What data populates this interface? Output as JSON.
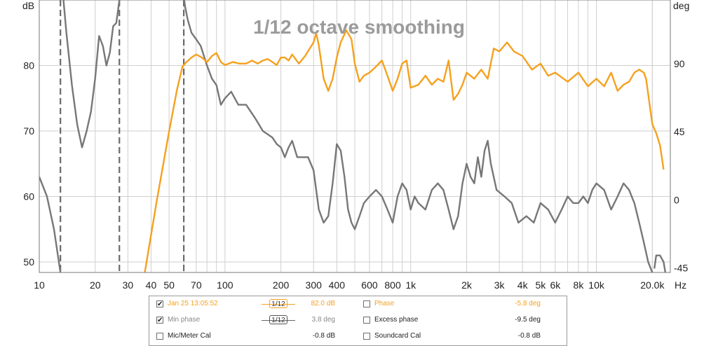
{
  "chart_data": {
    "type": "line",
    "title": "1/12 octave smoothing",
    "x_scale": "log",
    "xlim": [
      10,
      25000
    ],
    "xlabel": "Hz",
    "x_ticks": [
      {
        "v": 10,
        "label": "10"
      },
      {
        "v": 20,
        "label": "20"
      },
      {
        "v": 30,
        "label": "30"
      },
      {
        "v": 40,
        "label": "40"
      },
      {
        "v": 50,
        "label": "50"
      },
      {
        "v": 70,
        "label": "70"
      },
      {
        "v": 100,
        "label": "100"
      },
      {
        "v": 200,
        "label": "200"
      },
      {
        "v": 300,
        "label": "300"
      },
      {
        "v": 400,
        "label": "400"
      },
      {
        "v": 600,
        "label": "600"
      },
      {
        "v": 800,
        "label": "800"
      },
      {
        "v": 1000,
        "label": "1k"
      },
      {
        "v": 2000,
        "label": "2k"
      },
      {
        "v": 3000,
        "label": "3k"
      },
      {
        "v": 4000,
        "label": "4k"
      },
      {
        "v": 5000,
        "label": "5k"
      },
      {
        "v": 6000,
        "label": "6k"
      },
      {
        "v": 8000,
        "label": "8k"
      },
      {
        "v": 10000,
        "label": "10k"
      },
      {
        "v": 20000,
        "label": "20.0k"
      }
    ],
    "y_left": {
      "label": "dB",
      "lim": [
        48.4,
        90
      ],
      "ticks": [
        50,
        60,
        70,
        80
      ]
    },
    "y_right": {
      "label": "deg",
      "lim": [
        -48,
        132
      ],
      "ticks": [
        -45,
        0,
        45,
        90
      ]
    },
    "grid": true,
    "markers_hz": [
      13,
      27,
      60
    ],
    "series": [
      {
        "name": "Min phase",
        "axis": "left",
        "color": "#777777",
        "points": [
          [
            10,
            63
          ],
          [
            11,
            60
          ],
          [
            12,
            55
          ],
          [
            13,
            48.4
          ],
          [
            null,
            null
          ],
          [
            13.3,
            92
          ],
          [
            13.5,
            90
          ],
          [
            14,
            85
          ],
          [
            15,
            77
          ],
          [
            16,
            71
          ],
          [
            17,
            67.5
          ],
          [
            18,
            70
          ],
          [
            19,
            73
          ],
          [
            20,
            78
          ],
          [
            21,
            84.5
          ],
          [
            22,
            83
          ],
          [
            23,
            80
          ],
          [
            24,
            82
          ],
          [
            25,
            86
          ],
          [
            26,
            86.5
          ],
          [
            27,
            90
          ],
          [
            null,
            null
          ],
          [
            59,
            92
          ],
          [
            61,
            89
          ],
          [
            63,
            87
          ],
          [
            66,
            85
          ],
          [
            70,
            84
          ],
          [
            74,
            83
          ],
          [
            80,
            80
          ],
          [
            85,
            78
          ],
          [
            90,
            77
          ],
          [
            95,
            74
          ],
          [
            100,
            75
          ],
          [
            108,
            76
          ],
          [
            118,
            74
          ],
          [
            130,
            74
          ],
          [
            145,
            72
          ],
          [
            160,
            70
          ],
          [
            180,
            69
          ],
          [
            190,
            68
          ],
          [
            200,
            67.5
          ],
          [
            210,
            66
          ],
          [
            220,
            67.5
          ],
          [
            230,
            68.5
          ],
          [
            245,
            66
          ],
          [
            260,
            66
          ],
          [
            280,
            66
          ],
          [
            300,
            64
          ],
          [
            320,
            58
          ],
          [
            340,
            56
          ],
          [
            360,
            57
          ],
          [
            380,
            62
          ],
          [
            400,
            68
          ],
          [
            420,
            67
          ],
          [
            440,
            63
          ],
          [
            460,
            58
          ],
          [
            480,
            56
          ],
          [
            500,
            55
          ],
          [
            530,
            57
          ],
          [
            560,
            59
          ],
          [
            600,
            60
          ],
          [
            650,
            61
          ],
          [
            700,
            60
          ],
          [
            750,
            58
          ],
          [
            800,
            56
          ],
          [
            850,
            60
          ],
          [
            900,
            62
          ],
          [
            950,
            61
          ],
          [
            1000,
            58
          ],
          [
            1050,
            60
          ],
          [
            1100,
            59
          ],
          [
            1200,
            58
          ],
          [
            1300,
            61
          ],
          [
            1400,
            62
          ],
          [
            1500,
            61
          ],
          [
            1600,
            58
          ],
          [
            1700,
            55
          ],
          [
            1800,
            57
          ],
          [
            1900,
            62
          ],
          [
            2000,
            65
          ],
          [
            2100,
            63
          ],
          [
            2200,
            62
          ],
          [
            2300,
            66
          ],
          [
            2400,
            63
          ],
          [
            2500,
            67
          ],
          [
            2600,
            68.5
          ],
          [
            2700,
            65
          ],
          [
            2900,
            61
          ],
          [
            3200,
            60
          ],
          [
            3500,
            59
          ],
          [
            3800,
            56
          ],
          [
            4200,
            57
          ],
          [
            4600,
            56
          ],
          [
            5000,
            59
          ],
          [
            5500,
            58
          ],
          [
            6000,
            56
          ],
          [
            6500,
            58
          ],
          [
            7000,
            60
          ],
          [
            7500,
            59
          ],
          [
            8000,
            59
          ],
          [
            8500,
            60
          ],
          [
            9000,
            59
          ],
          [
            9500,
            61
          ],
          [
            10000,
            62
          ],
          [
            11000,
            61
          ],
          [
            12000,
            58
          ],
          [
            13000,
            60
          ],
          [
            14000,
            62
          ],
          [
            15000,
            61
          ],
          [
            16000,
            59
          ],
          [
            17000,
            56
          ],
          [
            18000,
            53
          ],
          [
            19000,
            50
          ],
          [
            20000,
            48.4
          ],
          [
            null,
            null
          ],
          [
            20500,
            49
          ],
          [
            21000,
            51
          ],
          [
            22000,
            51
          ],
          [
            23000,
            50
          ],
          [
            23500,
            48.4
          ]
        ]
      },
      {
        "name": "Phase",
        "axis": "right",
        "color": "#f5a11e",
        "points": [
          [
            37,
            -48
          ],
          [
            40,
            -23
          ],
          [
            43,
            0
          ],
          [
            46,
            20
          ],
          [
            50,
            45
          ],
          [
            55,
            72
          ],
          [
            59,
            88
          ],
          [
            62,
            91
          ],
          [
            66,
            94
          ],
          [
            70,
            96
          ],
          [
            75,
            94
          ],
          [
            80,
            91
          ],
          [
            85,
            95
          ],
          [
            90,
            97
          ],
          [
            95,
            91
          ],
          [
            100,
            89
          ],
          [
            110,
            91
          ],
          [
            120,
            90
          ],
          [
            130,
            90
          ],
          [
            140,
            92
          ],
          [
            150,
            90
          ],
          [
            160,
            92
          ],
          [
            170,
            93
          ],
          [
            180,
            91
          ],
          [
            190,
            89
          ],
          [
            200,
            94
          ],
          [
            210,
            94
          ],
          [
            220,
            92
          ],
          [
            230,
            96
          ],
          [
            250,
            90
          ],
          [
            270,
            95
          ],
          [
            300,
            104
          ],
          [
            310,
            110
          ],
          [
            320,
            102
          ],
          [
            340,
            80
          ],
          [
            360,
            72
          ],
          [
            380,
            80
          ],
          [
            400,
            94
          ],
          [
            420,
            104
          ],
          [
            450,
            112
          ],
          [
            480,
            106
          ],
          [
            500,
            90
          ],
          [
            530,
            78
          ],
          [
            560,
            82
          ],
          [
            600,
            84
          ],
          [
            650,
            88
          ],
          [
            700,
            92
          ],
          [
            750,
            82
          ],
          [
            800,
            72
          ],
          [
            850,
            80
          ],
          [
            900,
            90
          ],
          [
            950,
            92
          ],
          [
            1000,
            74
          ],
          [
            1100,
            76
          ],
          [
            1200,
            82
          ],
          [
            1300,
            76
          ],
          [
            1400,
            80
          ],
          [
            1500,
            78
          ],
          [
            1600,
            92
          ],
          [
            1700,
            66
          ],
          [
            1800,
            70
          ],
          [
            1900,
            76
          ],
          [
            2000,
            84
          ],
          [
            2200,
            80
          ],
          [
            2400,
            86
          ],
          [
            2600,
            80
          ],
          [
            2800,
            100
          ],
          [
            3000,
            98
          ],
          [
            3300,
            104
          ],
          [
            3600,
            98
          ],
          [
            4000,
            95
          ],
          [
            4500,
            86
          ],
          [
            5000,
            90
          ],
          [
            5500,
            82
          ],
          [
            6000,
            84
          ],
          [
            7000,
            78
          ],
          [
            8000,
            84
          ],
          [
            9000,
            75
          ],
          [
            10000,
            80
          ],
          [
            11000,
            75
          ],
          [
            12000,
            84
          ],
          [
            13000,
            72
          ],
          [
            14000,
            76
          ],
          [
            15000,
            78
          ],
          [
            16000,
            84
          ],
          [
            17000,
            86
          ],
          [
            18000,
            84
          ],
          [
            18500,
            80
          ],
          [
            19000,
            70
          ],
          [
            20000,
            50
          ],
          [
            21000,
            44
          ],
          [
            22000,
            36
          ],
          [
            22500,
            28
          ],
          [
            23000,
            20
          ]
        ]
      }
    ]
  },
  "legend": {
    "rows": [
      {
        "checked": true,
        "check_mark": "✔",
        "label": "Jan 25 13:05:52",
        "color": "#f5a11e",
        "smoothing": "1/12",
        "value": "82.0 dB",
        "label2": "Phase",
        "checked2": false,
        "color2": "#f5a11e",
        "value2": "-5.8 deg"
      },
      {
        "checked": true,
        "check_mark": "✔",
        "label": "Min phase",
        "color": "#888888",
        "smoothing": "1/12",
        "value": "3.8 deg",
        "label2": "Excess phase",
        "checked2": false,
        "color2": "#222222",
        "value2": "-9.5 deg"
      },
      {
        "checked": false,
        "check_mark": "",
        "label": "Mic/Meter Cal",
        "color": "#222222",
        "smoothing": "",
        "value": "-0.8 dB",
        "label2": "Soundcard Cal",
        "checked2": false,
        "color2": "#222222",
        "value2": "-0.8 dB"
      }
    ]
  }
}
